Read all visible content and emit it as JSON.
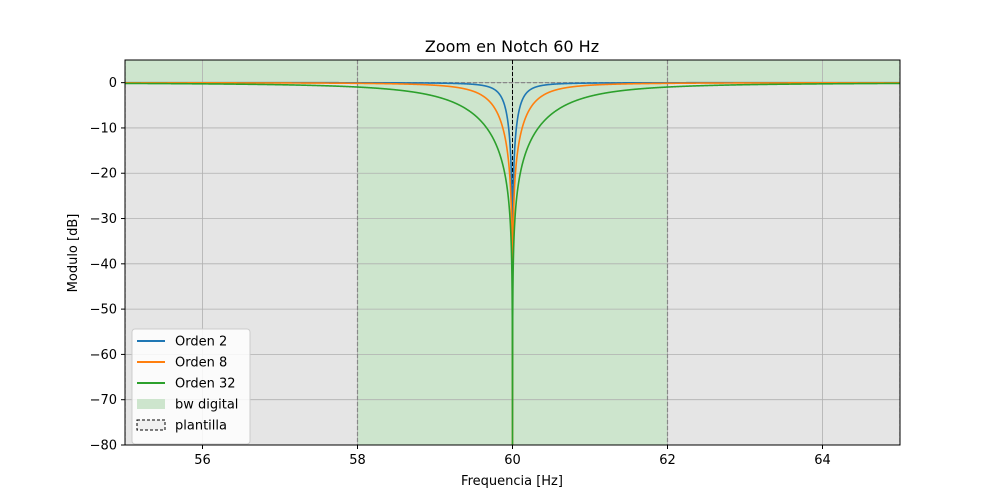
{
  "chart_data": {
    "type": "line",
    "title": "Zoom en Notch 60 Hz",
    "xlabel": "Frequencia [Hz]",
    "ylabel": "Modulo [dB]",
    "xlim": [
      55,
      65
    ],
    "ylim": [
      -80,
      5
    ],
    "xticks": [
      56,
      58,
      60,
      62,
      64
    ],
    "yticks": [
      0,
      -10,
      -20,
      -30,
      -40,
      -50,
      -60,
      -70,
      -80
    ],
    "xtick_labels": [
      "56",
      "58",
      "60",
      "62",
      "64"
    ],
    "ytick_labels": [
      "0",
      "−10",
      "−20",
      "−30",
      "−40",
      "−50",
      "−60",
      "−70",
      "−80"
    ],
    "grid": true,
    "legend_position": "lower-left",
    "series": [
      {
        "name": "Orden 2",
        "color": "#1f77b4",
        "notch_center": 60,
        "min_db": -43,
        "bw_3db_hz": 0.3
      },
      {
        "name": "Orden 8",
        "color": "#ff7f0e",
        "notch_center": 60,
        "min_db": -80,
        "bw_3db_hz": 0.75
      },
      {
        "name": "Orden 32",
        "color": "#2ca02c",
        "notch_center": 60,
        "min_db": -80,
        "bw_3db_hz": 2.0
      }
    ],
    "bands": [
      {
        "name": "bw digital",
        "type": "passband",
        "x": [
          55,
          58
        ],
        "color": "#2ca02c"
      },
      {
        "name": "bw digital",
        "type": "stopband",
        "x": [
          58,
          62
        ],
        "color": "#2ca02c"
      },
      {
        "name": "bw digital",
        "type": "passband",
        "x": [
          62,
          65
        ],
        "color": "#2ca02c"
      }
    ],
    "template": {
      "name": "plantilla",
      "vlines": [
        55,
        58,
        62,
        65
      ],
      "center_line": 60,
      "hline": 0
    },
    "legend": [
      "Orden 2",
      "Orden 8",
      "Orden 32",
      "bw digital",
      "plantilla"
    ]
  }
}
